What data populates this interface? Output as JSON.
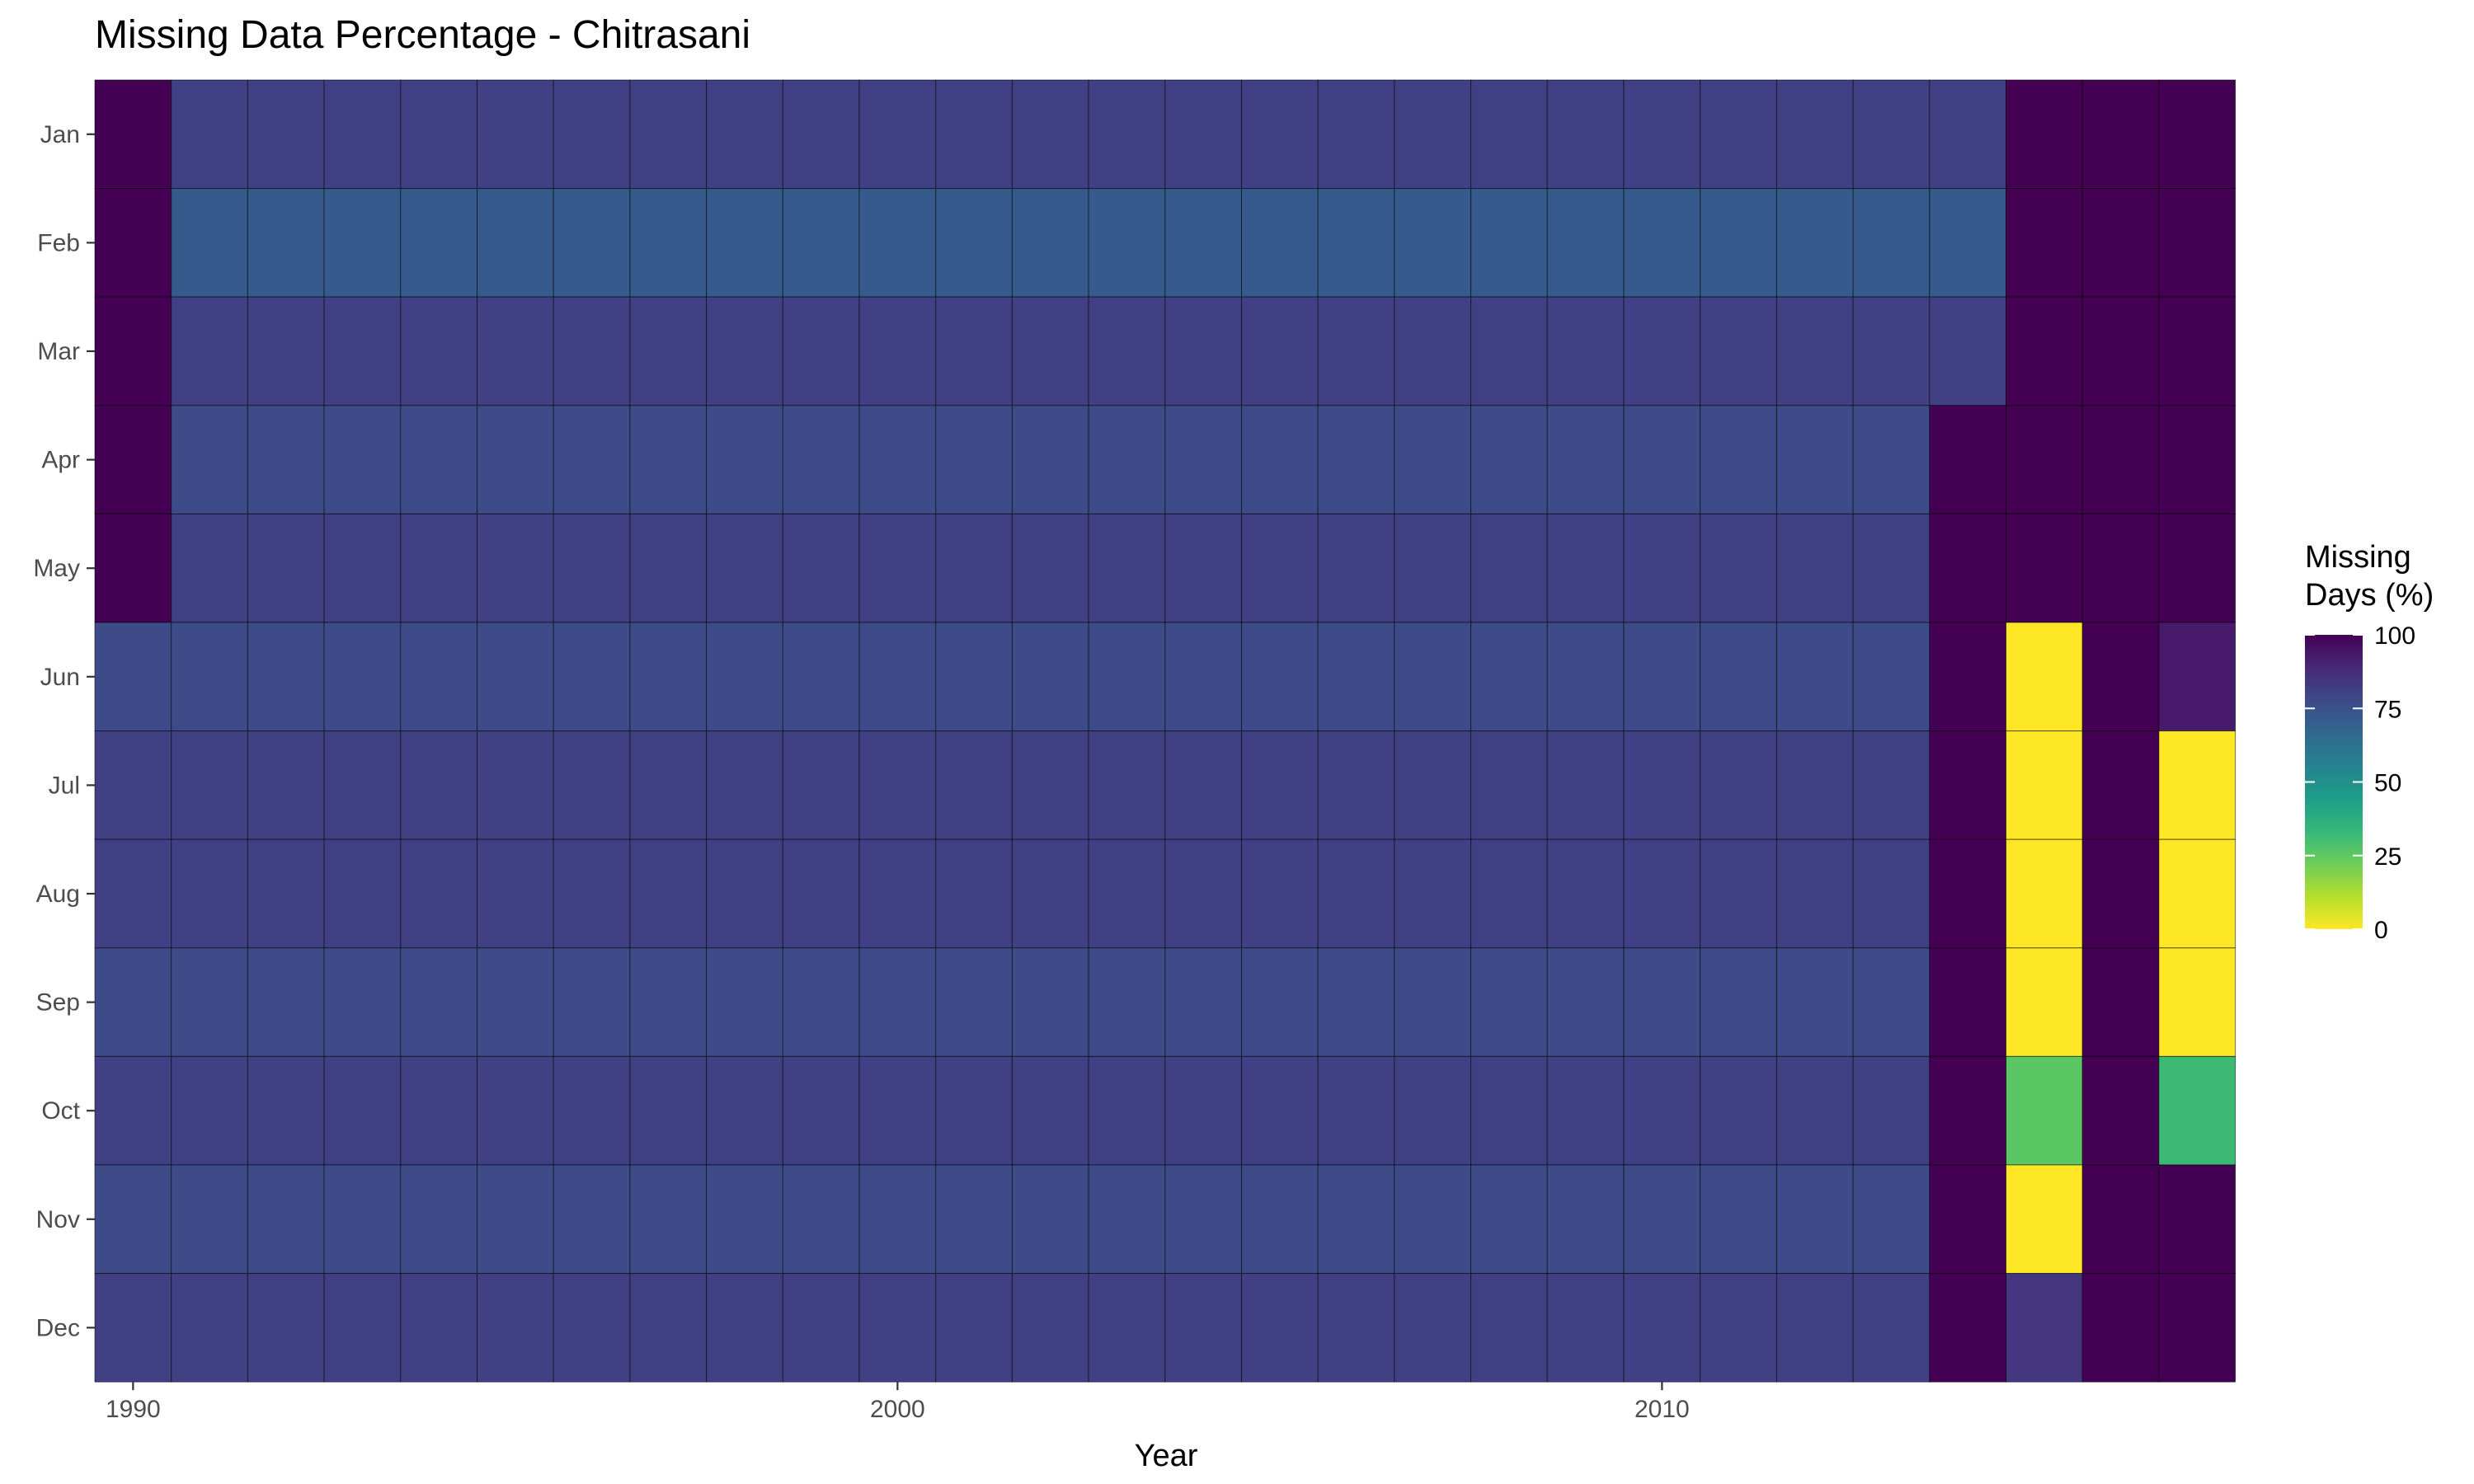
{
  "chart_data": {
    "type": "heatmap",
    "title": "Missing Data Percentage - Chitrasani",
    "xlabel": "Year",
    "ylabel": "",
    "x_ticks": [
      "1990",
      "2000",
      "2010"
    ],
    "x_tick_values": [
      1990,
      2000,
      2010
    ],
    "x": [
      1990,
      1991,
      1992,
      1993,
      1994,
      1995,
      1996,
      1997,
      1998,
      1999,
      2000,
      2001,
      2002,
      2003,
      2004,
      2005,
      2006,
      2007,
      2008,
      2009,
      2010,
      2011,
      2012,
      2013,
      2014,
      2015,
      2016,
      2017
    ],
    "y": [
      "Jan",
      "Feb",
      "Mar",
      "Apr",
      "May",
      "Jun",
      "Jul",
      "Aug",
      "Sep",
      "Oct",
      "Nov",
      "Dec"
    ],
    "values": [
      [
        100,
        81,
        81,
        81,
        81,
        81,
        81,
        81,
        81,
        81,
        81,
        81,
        81,
        81,
        81,
        81,
        81,
        81,
        81,
        81,
        81,
        81,
        81,
        81,
        81,
        100,
        100,
        100
      ],
      [
        100,
        72,
        72,
        72,
        72,
        72,
        72,
        72,
        72,
        72,
        72,
        72,
        72,
        72,
        72,
        72,
        72,
        72,
        72,
        72,
        72,
        72,
        72,
        72,
        72,
        100,
        100,
        100
      ],
      [
        100,
        81,
        81,
        81,
        81,
        81,
        81,
        81,
        81,
        81,
        81,
        81,
        81,
        81,
        81,
        81,
        81,
        81,
        81,
        81,
        81,
        81,
        81,
        81,
        81,
        100,
        100,
        100
      ],
      [
        100,
        77,
        77,
        77,
        77,
        77,
        77,
        77,
        77,
        77,
        77,
        77,
        77,
        77,
        77,
        77,
        77,
        77,
        77,
        77,
        77,
        77,
        77,
        77,
        100,
        100,
        100,
        100
      ],
      [
        100,
        81,
        81,
        81,
        81,
        81,
        81,
        81,
        81,
        81,
        81,
        81,
        81,
        81,
        81,
        81,
        81,
        81,
        81,
        81,
        81,
        81,
        81,
        81,
        100,
        100,
        100,
        100
      ],
      [
        77,
        77,
        77,
        77,
        77,
        77,
        77,
        77,
        77,
        77,
        77,
        77,
        77,
        77,
        77,
        77,
        77,
        77,
        77,
        77,
        77,
        77,
        77,
        77,
        100,
        0,
        100,
        93
      ],
      [
        81,
        81,
        81,
        81,
        81,
        81,
        81,
        81,
        81,
        81,
        81,
        81,
        81,
        81,
        81,
        81,
        81,
        81,
        81,
        81,
        81,
        81,
        81,
        81,
        100,
        0,
        100,
        0
      ],
      [
        81,
        81,
        81,
        81,
        81,
        81,
        81,
        81,
        81,
        81,
        81,
        81,
        81,
        81,
        81,
        81,
        81,
        81,
        81,
        81,
        81,
        81,
        81,
        81,
        100,
        0,
        100,
        0
      ],
      [
        77,
        77,
        77,
        77,
        77,
        77,
        77,
        77,
        77,
        77,
        77,
        77,
        77,
        77,
        77,
        77,
        77,
        77,
        77,
        77,
        77,
        77,
        77,
        77,
        100,
        0,
        100,
        0
      ],
      [
        81,
        81,
        81,
        81,
        81,
        81,
        81,
        81,
        81,
        81,
        81,
        81,
        81,
        81,
        81,
        81,
        81,
        81,
        81,
        81,
        81,
        81,
        81,
        81,
        100,
        26,
        100,
        32
      ],
      [
        77,
        77,
        77,
        77,
        77,
        77,
        77,
        77,
        77,
        77,
        77,
        77,
        77,
        77,
        77,
        77,
        77,
        77,
        77,
        77,
        77,
        77,
        77,
        77,
        100,
        0,
        100,
        100
      ],
      [
        81,
        81,
        81,
        81,
        81,
        81,
        81,
        81,
        81,
        81,
        81,
        81,
        81,
        81,
        81,
        81,
        81,
        81,
        81,
        81,
        81,
        81,
        81,
        81,
        100,
        84,
        100,
        100
      ]
    ],
    "color_scale": {
      "name": "viridis",
      "direction": "reversed",
      "domain": [
        0,
        100
      ],
      "stops": [
        "#FDE725",
        "#B4DE2C",
        "#6DCD59",
        "#35B779",
        "#1F9E89",
        "#26828E",
        "#31688E",
        "#3E4A89",
        "#482878",
        "#440154"
      ]
    },
    "legend": {
      "title_lines": [
        "Missing",
        "Days (%)"
      ],
      "labels": [
        "100",
        "75",
        "50",
        "25",
        "0"
      ],
      "label_values": [
        100,
        75,
        50,
        25,
        0
      ],
      "position": "right"
    },
    "grid": false,
    "colors": {
      "cell_border": "#000000",
      "background": "#ffffff"
    }
  }
}
